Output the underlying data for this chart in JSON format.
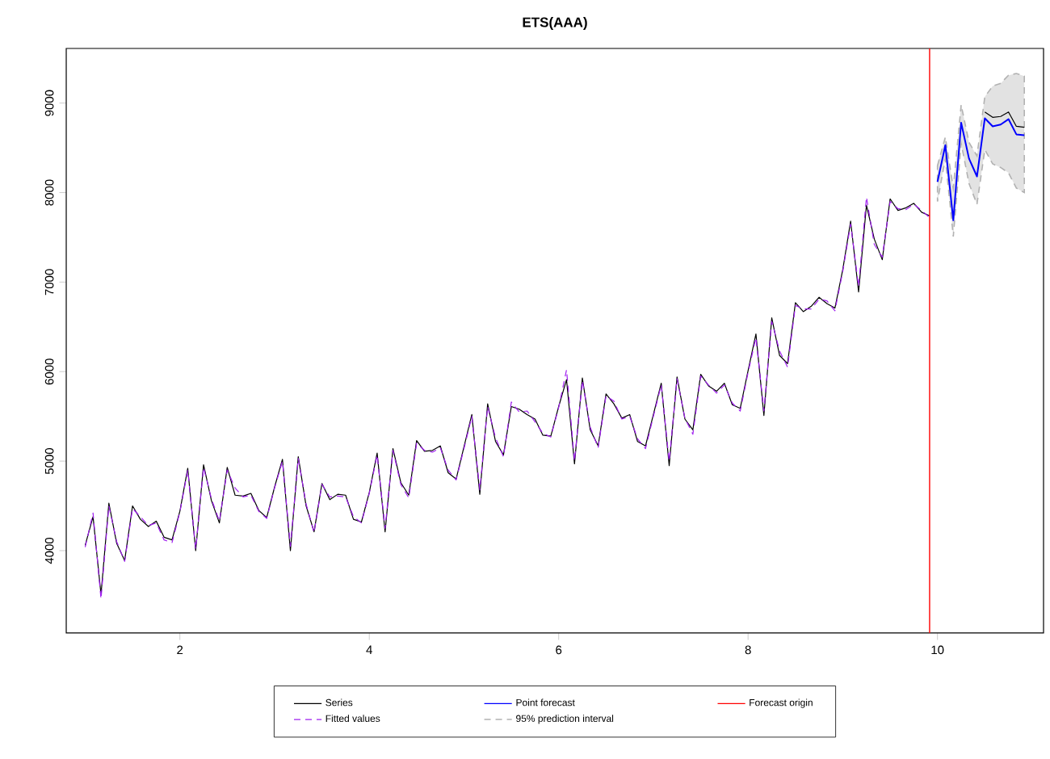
{
  "chart_data": {
    "type": "line",
    "title": "ETS(AAA)",
    "legend": "bottom",
    "xlim": [
      0.8,
      11.12
    ],
    "ylim": [
      3080,
      9610
    ],
    "xticks": [
      2,
      4,
      6,
      8,
      10
    ],
    "yticks": [
      4000,
      5000,
      6000,
      7000,
      8000,
      9000
    ],
    "series": [
      {
        "name": "Series",
        "color": "#000000",
        "x": [
          1,
          1.083,
          1.167,
          1.25,
          1.333,
          1.417,
          1.5,
          1.583,
          1.667,
          1.75,
          1.833,
          1.917,
          2,
          2.083,
          2.167,
          2.25,
          2.333,
          2.417,
          2.5,
          2.583,
          2.667,
          2.75,
          2.833,
          2.917,
          3,
          3.083,
          3.167,
          3.25,
          3.333,
          3.417,
          3.5,
          3.583,
          3.667,
          3.75,
          3.833,
          3.917,
          4,
          4.083,
          4.167,
          4.25,
          4.333,
          4.417,
          4.5,
          4.583,
          4.667,
          4.75,
          4.833,
          4.917,
          5,
          5.083,
          5.167,
          5.25,
          5.333,
          5.417,
          5.5,
          5.583,
          5.667,
          5.75,
          5.833,
          5.917,
          6,
          6.083,
          6.167,
          6.25,
          6.333,
          6.417,
          6.5,
          6.583,
          6.667,
          6.75,
          6.833,
          6.917,
          7,
          7.083,
          7.167,
          7.25,
          7.333,
          7.417,
          7.5,
          7.583,
          7.667,
          7.75,
          7.833,
          7.917,
          8,
          8.083,
          8.167,
          8.25,
          8.333,
          8.417,
          8.5,
          8.583,
          8.667,
          8.75,
          8.833,
          8.917,
          9,
          9.083,
          9.167,
          9.25,
          9.333,
          9.417,
          9.5,
          9.583,
          9.667,
          9.75,
          9.833,
          9.917,
          10,
          10.083,
          10.167,
          10.25,
          10.333,
          10.417,
          10.5,
          10.583,
          10.667,
          10.75,
          10.833,
          10.917
        ],
        "values": [
          4060,
          4380,
          3510,
          4530,
          4080,
          3890,
          4500,
          4350,
          4270,
          4330,
          4150,
          4120,
          4440,
          4920,
          4000,
          4960,
          4560,
          4310,
          4930,
          4620,
          4610,
          4640,
          4450,
          4370,
          4710,
          5020,
          4000,
          5050,
          4500,
          4210,
          4750,
          4570,
          4630,
          4620,
          4350,
          4320,
          4650,
          5090,
          4210,
          5140,
          4760,
          4620,
          5230,
          5110,
          5120,
          5170,
          4870,
          4800,
          5160,
          5520,
          4630,
          5640,
          5220,
          5070,
          5610,
          5580,
          5520,
          5470,
          5290,
          5280,
          5610,
          5910,
          4970,
          5930,
          5350,
          5170,
          5750,
          5640,
          5480,
          5520,
          5220,
          5170,
          5520,
          5870,
          4950,
          5940,
          5470,
          5350,
          5970,
          5840,
          5780,
          5870,
          5630,
          5590,
          6010,
          6420,
          5510,
          6600,
          6180,
          6090,
          6770,
          6670,
          6730,
          6830,
          6760,
          6710,
          7140,
          7680,
          6890,
          7860,
          7480,
          7250,
          7930,
          7800,
          7830,
          7880,
          7780,
          7740,
          null,
          null,
          null,
          null,
          null,
          null,
          8900,
          8840,
          8850,
          8900,
          8740,
          8730
        ]
      },
      {
        "name": "Fitted values",
        "color": "#a020f0",
        "line_style": "dashed",
        "x": [
          1,
          1.083,
          1.167,
          1.25,
          1.333,
          1.417,
          1.5,
          1.583,
          1.667,
          1.75,
          1.833,
          1.917,
          2,
          2.083,
          2.167,
          2.25,
          2.333,
          2.417,
          2.5,
          2.583,
          2.667,
          2.75,
          2.833,
          2.917,
          3,
          3.083,
          3.167,
          3.25,
          3.333,
          3.417,
          3.5,
          3.583,
          3.667,
          3.75,
          3.833,
          3.917,
          4,
          4.083,
          4.167,
          4.25,
          4.333,
          4.417,
          4.5,
          4.583,
          4.667,
          4.75,
          4.833,
          4.917,
          5,
          5.083,
          5.167,
          5.25,
          5.333,
          5.417,
          5.5,
          5.583,
          5.667,
          5.75,
          5.833,
          5.917,
          6,
          6.083,
          6.167,
          6.25,
          6.333,
          6.417,
          6.5,
          6.583,
          6.667,
          6.75,
          6.833,
          6.917,
          7,
          7.083,
          7.167,
          7.25,
          7.333,
          7.417,
          7.5,
          7.583,
          7.667,
          7.75,
          7.833,
          7.917,
          8,
          8.083,
          8.167,
          8.25,
          8.333,
          8.417,
          8.5,
          8.583,
          8.667,
          8.75,
          8.833,
          8.917,
          9,
          9.083,
          9.167,
          9.25,
          9.333,
          9.417,
          9.5,
          9.583,
          9.667,
          9.75,
          9.833,
          9.917
        ],
        "values": [
          4040,
          4420,
          3460,
          4500,
          4100,
          3880,
          4470,
          4380,
          4280,
          4310,
          4120,
          4090,
          4430,
          4900,
          4020,
          4930,
          4580,
          4330,
          4900,
          4700,
          4600,
          4620,
          4440,
          4360,
          4700,
          5000,
          4050,
          5030,
          4520,
          4200,
          4740,
          4600,
          4610,
          4600,
          4380,
          4310,
          4640,
          5070,
          4250,
          5120,
          4740,
          4590,
          5200,
          5120,
          5100,
          5150,
          4900,
          4790,
          5140,
          5500,
          4680,
          5610,
          5260,
          5050,
          5660,
          5550,
          5560,
          5440,
          5310,
          5270,
          5600,
          6020,
          5000,
          5900,
          5380,
          5150,
          5730,
          5670,
          5470,
          5500,
          5250,
          5140,
          5500,
          5850,
          5000,
          5920,
          5480,
          5300,
          5950,
          5850,
          5760,
          5850,
          5650,
          5560,
          5990,
          6380,
          5560,
          6560,
          6230,
          6050,
          6740,
          6700,
          6700,
          6810,
          6790,
          6680,
          7120,
          7650,
          6950,
          7950,
          7420,
          7280,
          7900,
          7820,
          7810,
          7870,
          7800,
          7720
        ]
      },
      {
        "name": "Point forecast",
        "color": "#0000ff",
        "x": [
          10,
          10.083,
          10.167,
          10.25,
          10.333,
          10.417,
          10.5,
          10.583,
          10.667,
          10.75,
          10.833,
          10.917
        ],
        "values": [
          8120,
          8530,
          7690,
          8780,
          8380,
          8180,
          8830,
          8740,
          8760,
          8820,
          8650,
          8640
        ],
        "lower": [
          7900,
          8380,
          7510,
          8550,
          8100,
          7870,
          8480,
          8320,
          8280,
          8220,
          8050,
          8000
        ],
        "upper": [
          8300,
          8620,
          8050,
          8980,
          8560,
          8410,
          9070,
          9190,
          9220,
          9310,
          9330,
          9300
        ]
      }
    ],
    "annotations": [
      "95% prediction interval"
    ],
    "ref_lines": [
      {
        "axis": "x",
        "value": 9.917,
        "label": "Forecast origin",
        "color": "#ff0000"
      }
    ]
  }
}
